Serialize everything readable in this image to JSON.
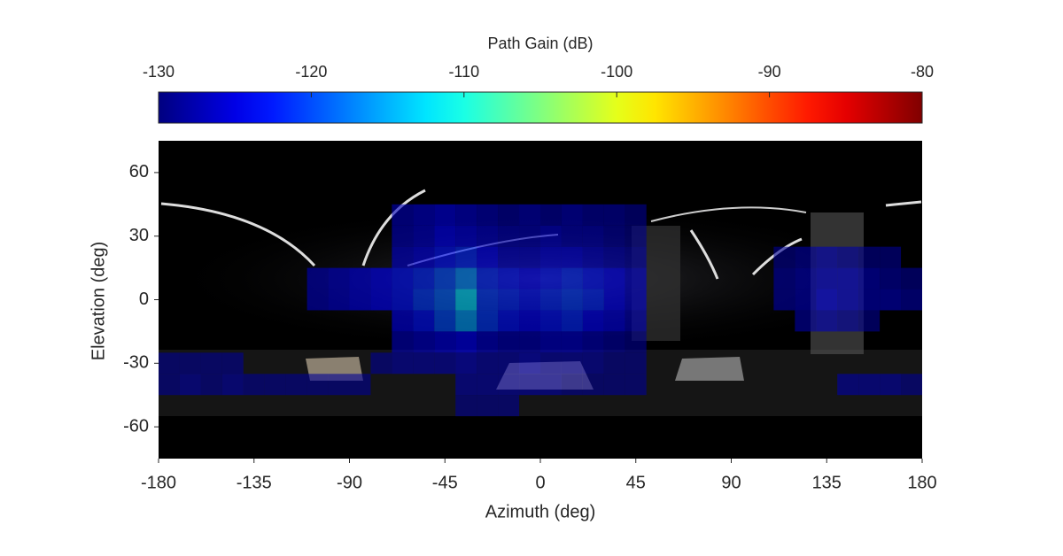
{
  "chart_data": {
    "type": "heatmap",
    "colorbar_label": "Path Gain (dB)",
    "xlabel": "Azimuth (deg)",
    "ylabel": "Elevation (deg)",
    "colormap": "jet",
    "clim": [
      -130,
      -80
    ],
    "cticks": [
      -130,
      -120,
      -110,
      -100,
      -90,
      -80
    ],
    "xlim": [
      -180,
      180
    ],
    "xticks": [
      -180,
      -135,
      -90,
      -45,
      0,
      45,
      90,
      135,
      180
    ],
    "ylim": [
      -75,
      75
    ],
    "yticks": [
      -60,
      -30,
      0,
      30,
      60
    ],
    "x": [
      -175,
      -165,
      -155,
      -145,
      -135,
      -125,
      -115,
      -105,
      -95,
      -85,
      -75,
      -65,
      -55,
      -45,
      -35,
      -25,
      -15,
      -5,
      5,
      15,
      25,
      35,
      45,
      55,
      65,
      75,
      85,
      95,
      105,
      115,
      125,
      135,
      145,
      155,
      165,
      175
    ],
    "y": [
      40,
      30,
      20,
      10,
      0,
      -10,
      -20,
      -30,
      -40,
      -50
    ],
    "values": [
      [
        null,
        null,
        null,
        null,
        null,
        null,
        null,
        null,
        null,
        null,
        null,
        -127,
        -126,
        -125,
        -126,
        -127,
        -128,
        -127,
        -128,
        -127,
        -128,
        -128,
        -129,
        null,
        null,
        null,
        null,
        null,
        null,
        null,
        null,
        null,
        null,
        null,
        null,
        null
      ],
      [
        null,
        null,
        null,
        null,
        null,
        null,
        null,
        null,
        null,
        null,
        null,
        -127,
        -126,
        -124,
        -125,
        -126,
        -127,
        -127,
        -126,
        -127,
        -127,
        -128,
        -129,
        null,
        null,
        null,
        null,
        null,
        null,
        null,
        null,
        null,
        null,
        null,
        null,
        null
      ],
      [
        null,
        null,
        null,
        null,
        null,
        null,
        null,
        null,
        null,
        null,
        null,
        -126,
        -125,
        -123,
        -122,
        -124,
        -126,
        -126,
        -125,
        -125,
        -126,
        -127,
        -128,
        null,
        null,
        null,
        null,
        null,
        null,
        -129,
        -128,
        -127,
        -128,
        -129,
        -129,
        null
      ],
      [
        null,
        null,
        null,
        null,
        null,
        null,
        null,
        -127,
        -126,
        -125,
        -124,
        -123,
        -122,
        -120,
        -117,
        -122,
        -123,
        -124,
        -123,
        -122,
        -123,
        -124,
        -126,
        null,
        null,
        null,
        null,
        null,
        null,
        -128,
        -127,
        -126,
        -126,
        -127,
        -128,
        -129
      ],
      [
        null,
        null,
        null,
        null,
        null,
        null,
        null,
        -127,
        -126,
        -125,
        -124,
        -123,
        -121,
        -119,
        -113,
        -121,
        -122,
        -123,
        -122,
        -121,
        -122,
        -124,
        -126,
        null,
        null,
        null,
        null,
        null,
        null,
        -128,
        -127,
        -125,
        -126,
        -127,
        -127,
        -128
      ],
      [
        null,
        null,
        null,
        null,
        null,
        null,
        null,
        null,
        null,
        null,
        null,
        -125,
        -123,
        -120,
        -116,
        -121,
        -123,
        -124,
        -123,
        -122,
        -124,
        -125,
        -127,
        null,
        null,
        null,
        null,
        null,
        null,
        null,
        -128,
        -127,
        -128,
        -129,
        null,
        null
      ],
      [
        null,
        null,
        null,
        null,
        null,
        null,
        null,
        null,
        null,
        null,
        null,
        -127,
        -126,
        -125,
        -124,
        -126,
        -127,
        -127,
        -126,
        -126,
        -127,
        -128,
        -129,
        null,
        null,
        null,
        null,
        null,
        null,
        null,
        null,
        null,
        null,
        null,
        null,
        null
      ],
      [
        -129,
        -129,
        -129,
        -129,
        null,
        null,
        null,
        null,
        null,
        null,
        -129,
        -128,
        -128,
        -128,
        -127,
        -128,
        -128,
        -127,
        -128,
        -128,
        -128,
        -129,
        -129,
        null,
        null,
        null,
        null,
        null,
        null,
        null,
        null,
        null,
        null,
        null,
        null,
        null
      ],
      [
        -129,
        -128,
        -129,
        -128,
        -129,
        -129,
        -129,
        -129,
        -129,
        -129,
        null,
        null,
        null,
        null,
        -128,
        -128,
        -128,
        -128,
        -128,
        -129,
        -129,
        -129,
        -129,
        null,
        null,
        null,
        null,
        null,
        null,
        null,
        null,
        null,
        -128,
        -128,
        -128,
        -129
      ],
      [
        null,
        null,
        null,
        null,
        null,
        null,
        null,
        null,
        null,
        null,
        null,
        null,
        null,
        null,
        -129,
        -129,
        -129,
        null,
        null,
        null,
        null,
        null,
        null,
        null,
        null,
        null,
        null,
        null,
        null,
        null,
        null,
        null,
        null,
        null,
        null,
        null
      ]
    ]
  }
}
